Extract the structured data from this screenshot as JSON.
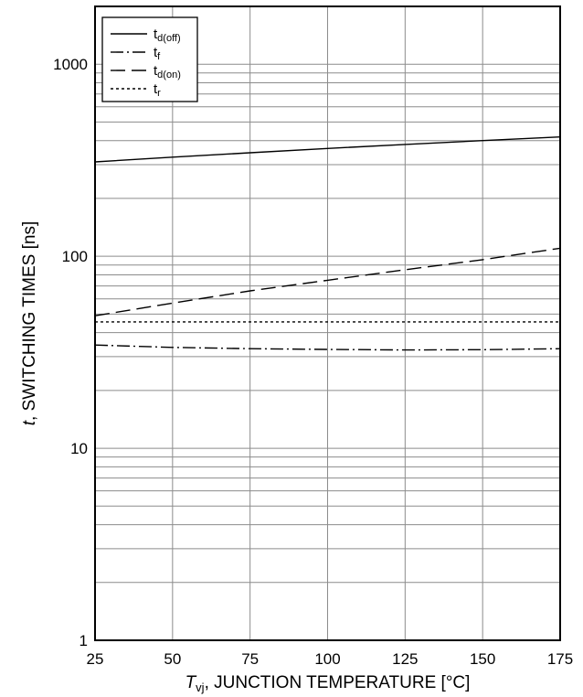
{
  "chart_data": {
    "type": "line",
    "xscale": "linear",
    "yscale": "log",
    "xlim": [
      25,
      175
    ],
    "ylim": [
      1,
      2000
    ],
    "grid": true,
    "x_ticks": [
      25,
      50,
      75,
      100,
      125,
      150,
      175
    ],
    "x_tick_labels": [
      "25",
      "50",
      "75",
      "100",
      "125",
      "150",
      "175"
    ],
    "y_ticks": [
      1,
      10,
      100,
      1000
    ],
    "y_tick_labels": [
      "1",
      "10",
      "100",
      "1000"
    ],
    "xlabel": {
      "italic": "T",
      "sub": "vj",
      "rest": ", JUNCTION TEMPERATURE [°C]"
    },
    "ylabel": {
      "italic": "t",
      "rest": ", SWITCHING TIMES [ns]"
    },
    "legend_position": "top-left",
    "series": [
      {
        "name": "t",
        "sub": "d(off)",
        "dash": "solid",
        "x": [
          25,
          50,
          75,
          100,
          125,
          150,
          175
        ],
        "y": [
          310,
          328,
          346,
          364,
          382,
          400,
          418
        ]
      },
      {
        "name": "t",
        "sub": "f",
        "dash": "dash-dot",
        "x": [
          25,
          50,
          75,
          100,
          125,
          150,
          175
        ],
        "y": [
          34.5,
          33.5,
          33.0,
          32.7,
          32.5,
          32.6,
          33.0
        ]
      },
      {
        "name": "t",
        "sub": "d(on)",
        "dash": "long-dash",
        "x": [
          25,
          50,
          75,
          100,
          125,
          150,
          175
        ],
        "y": [
          49,
          57,
          66,
          75,
          85,
          96,
          110
        ]
      },
      {
        "name": "t",
        "sub": "r",
        "dash": "dotted",
        "x": [
          25,
          50,
          75,
          100,
          125,
          150,
          175
        ],
        "y": [
          45.5,
          45.5,
          45.5,
          45.5,
          45.5,
          45.5,
          45.5
        ]
      }
    ]
  }
}
